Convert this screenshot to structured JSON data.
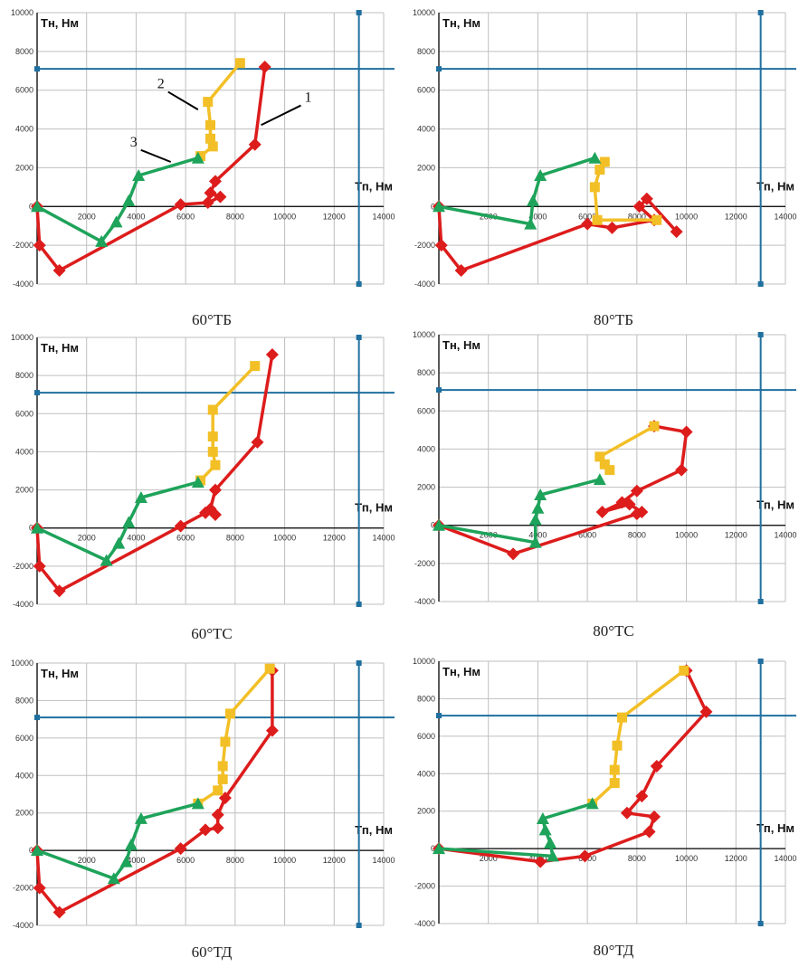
{
  "colors": {
    "series_1": "#dd1c1c",
    "series_2": "#f2bf26",
    "series_3": "#1ea35a",
    "limit_lines": "#1f6f9f",
    "grid": "#bfbfbf",
    "axis": "#000000"
  },
  "chart_data": [
    {
      "type": "line",
      "caption": "60°ТБ",
      "ylabel": "Тн, Нм",
      "xlabel": "Тп, Нм",
      "xlim": [
        0,
        14000
      ],
      "ylim": [
        -4000,
        10000
      ],
      "x_ticks": [
        "2000",
        "4000",
        "6000",
        "8000",
        "10000",
        "12000",
        "14000"
      ],
      "y_ticks": [
        "-4000",
        "-2000",
        "0",
        "2000",
        "4000",
        "6000",
        "8000",
        "10000"
      ],
      "grid": true,
      "limit_lines": {
        "x": 13000,
        "y": 7100
      },
      "annotations": [
        {
          "text": "1",
          "x": 10800,
          "y": 5400,
          "ax": 9050,
          "ay": 4200
        },
        {
          "text": "2",
          "x": 5000,
          "y": 6100,
          "ax": 6500,
          "ay": 5000
        },
        {
          "text": "3",
          "x": 3900,
          "y": 3100,
          "ax": 5400,
          "ay": 2300
        }
      ],
      "series": [
        {
          "values": [
            [
              9200,
              7200
            ],
            [
              8800,
              3200
            ],
            [
              7200,
              1300
            ],
            [
              7000,
              700
            ],
            [
              7400,
              500
            ],
            [
              6900,
              200
            ],
            [
              5800,
              100
            ],
            [
              900,
              -3300
            ],
            [
              100,
              -2000
            ],
            [
              0,
              0
            ]
          ]
        },
        {
          "values": [
            [
              8200,
              7400
            ],
            [
              6900,
              5400
            ],
            [
              7000,
              4200
            ],
            [
              7000,
              3500
            ],
            [
              7100,
              3100
            ],
            [
              6600,
              2600
            ]
          ]
        },
        {
          "values": [
            [
              0,
              0
            ],
            [
              2600,
              -1800
            ],
            [
              3200,
              -800
            ],
            [
              3700,
              300
            ],
            [
              4100,
              1600
            ],
            [
              6500,
              2500
            ]
          ]
        }
      ]
    },
    {
      "type": "line",
      "caption": "80°ТБ",
      "ylabel": "Тн, Нм",
      "xlabel": "Тп, Нм",
      "xlim": [
        0,
        14000
      ],
      "ylim": [
        -4000,
        10000
      ],
      "x_ticks": [
        "2000",
        "4000",
        "6000",
        "8000",
        "10000",
        "12000",
        "14000"
      ],
      "y_ticks": [
        "-4000",
        "-2000",
        "0",
        "2000",
        "4000",
        "6000",
        "8000",
        "10000"
      ],
      "grid": true,
      "limit_lines": {
        "x": 13000,
        "y": 7100
      },
      "annotations": [],
      "series": [
        {
          "values": [
            [
              9600,
              -1300
            ],
            [
              8400,
              400
            ],
            [
              8100,
              0
            ],
            [
              8700,
              -700
            ],
            [
              7000,
              -1100
            ],
            [
              6000,
              -900
            ],
            [
              900,
              -3300
            ],
            [
              100,
              -2000
            ],
            [
              0,
              0
            ]
          ]
        },
        {
          "values": [
            [
              6700,
              2300
            ],
            [
              6500,
              1900
            ],
            [
              6300,
              1000
            ],
            [
              6400,
              -700
            ],
            [
              8800,
              -700
            ]
          ]
        },
        {
          "values": [
            [
              0,
              0
            ],
            [
              3700,
              -900
            ],
            [
              3800,
              300
            ],
            [
              4100,
              1600
            ],
            [
              6300,
              2500
            ]
          ]
        }
      ]
    },
    {
      "type": "line",
      "caption": "60°ТС",
      "ylabel": "Тн, Нм",
      "xlabel": "Тп, Нм",
      "xlim": [
        0,
        14000
      ],
      "ylim": [
        -4000,
        10000
      ],
      "x_ticks": [
        "2000",
        "4000",
        "6000",
        "8000",
        "10000",
        "12000",
        "14000"
      ],
      "y_ticks": [
        "-4000",
        "-2000",
        "0",
        "2000",
        "4000",
        "6000",
        "8000",
        "10000"
      ],
      "grid": true,
      "limit_lines": {
        "x": 13000,
        "y": 7100
      },
      "annotations": [],
      "series": [
        {
          "values": [
            [
              9500,
              9100
            ],
            [
              8900,
              4500
            ],
            [
              7200,
              2000
            ],
            [
              7000,
              1000
            ],
            [
              7200,
              700
            ],
            [
              6800,
              800
            ],
            [
              5800,
              100
            ],
            [
              900,
              -3300
            ],
            [
              100,
              -2000
            ],
            [
              0,
              0
            ]
          ]
        },
        {
          "values": [
            [
              8800,
              8500
            ],
            [
              7100,
              6200
            ],
            [
              7100,
              4800
            ],
            [
              7100,
              4000
            ],
            [
              7200,
              3300
            ],
            [
              6600,
              2500
            ]
          ]
        },
        {
          "values": [
            [
              0,
              0
            ],
            [
              2800,
              -1700
            ],
            [
              3300,
              -800
            ],
            [
              3700,
              300
            ],
            [
              4200,
              1600
            ],
            [
              6500,
              2400
            ]
          ]
        }
      ]
    },
    {
      "type": "line",
      "caption": "80°ТС",
      "ylabel": "Тн, Нм",
      "xlabel": "Тп, Нм",
      "xlim": [
        0,
        14000
      ],
      "ylim": [
        -4000,
        10000
      ],
      "x_ticks": [
        "2000",
        "4000",
        "6000",
        "8000",
        "10000",
        "12000",
        "14000"
      ],
      "y_ticks": [
        "-4000",
        "-2000",
        "0",
        "2000",
        "4000",
        "6000",
        "8000",
        "10000"
      ],
      "grid": true,
      "limit_lines": {
        "x": 13000,
        "y": 7100
      },
      "annotations": [],
      "series": [
        {
          "values": [
            [
              8700,
              5200
            ],
            [
              10000,
              4900
            ],
            [
              9800,
              2900
            ],
            [
              8000,
              1800
            ],
            [
              7400,
              1200
            ],
            [
              6600,
              700
            ],
            [
              7700,
              1100
            ],
            [
              8200,
              700
            ],
            [
              8000,
              600
            ],
            [
              3000,
              -1500
            ],
            [
              0,
              0
            ]
          ]
        },
        {
          "values": [
            [
              8700,
              5200
            ],
            [
              6500,
              3600
            ],
            [
              6700,
              3200
            ],
            [
              6900,
              2900
            ]
          ]
        },
        {
          "values": [
            [
              0,
              0
            ],
            [
              3900,
              -900
            ],
            [
              3900,
              300
            ],
            [
              4000,
              900
            ],
            [
              4100,
              1600
            ],
            [
              6500,
              2400
            ]
          ]
        }
      ]
    },
    {
      "type": "line",
      "caption": "60°ТД",
      "ylabel": "Тн, Нм",
      "xlabel": "Тп, Нм",
      "xlim": [
        0,
        14000
      ],
      "ylim": [
        -4000,
        10000
      ],
      "x_ticks": [
        "2000",
        "4000",
        "6000",
        "8000",
        "10000",
        "12000",
        "14000"
      ],
      "y_ticks": [
        "-4000",
        "-2000",
        "0",
        "2000",
        "4000",
        "6000",
        "8000",
        "10000"
      ],
      "grid": true,
      "limit_lines": {
        "x": 13000,
        "y": 7100
      },
      "annotations": [],
      "series": [
        {
          "values": [
            [
              9500,
              9600
            ],
            [
              9500,
              6400
            ],
            [
              7600,
              2800
            ],
            [
              7300,
              1900
            ],
            [
              7300,
              1200
            ],
            [
              6800,
              1100
            ],
            [
              5800,
              100
            ],
            [
              900,
              -3300
            ],
            [
              100,
              -2000
            ],
            [
              0,
              0
            ]
          ]
        },
        {
          "values": [
            [
              9400,
              9700
            ],
            [
              7800,
              7300
            ],
            [
              7600,
              5800
            ],
            [
              7500,
              4500
            ],
            [
              7500,
              3800
            ],
            [
              7300,
              3200
            ],
            [
              6500,
              2500
            ]
          ]
        },
        {
          "values": [
            [
              0,
              0
            ],
            [
              3100,
              -1500
            ],
            [
              3600,
              -600
            ],
            [
              3800,
              300
            ],
            [
              4200,
              1700
            ],
            [
              6500,
              2500
            ]
          ]
        }
      ]
    },
    {
      "type": "line",
      "caption": "80°ТД",
      "ylabel": "Тн, Нм",
      "xlabel": "Тп, Нм",
      "xlim": [
        0,
        14000
      ],
      "ylim": [
        -4000,
        10000
      ],
      "x_ticks": [
        "2000",
        "4000",
        "6000",
        "8000",
        "10000",
        "12000",
        "14000"
      ],
      "y_ticks": [
        "-4000",
        "-2000",
        "0",
        "2000",
        "4000",
        "6000",
        "8000",
        "10000"
      ],
      "grid": true,
      "limit_lines": {
        "x": 13000,
        "y": 7100
      },
      "annotations": [],
      "series": [
        {
          "values": [
            [
              10000,
              9500
            ],
            [
              10800,
              7300
            ],
            [
              8800,
              4400
            ],
            [
              8200,
              2800
            ],
            [
              7600,
              1900
            ],
            [
              8700,
              1700
            ],
            [
              8500,
              900
            ],
            [
              5900,
              -400
            ],
            [
              4100,
              -700
            ],
            [
              0,
              0
            ]
          ]
        },
        {
          "values": [
            [
              9900,
              9500
            ],
            [
              7400,
              7000
            ],
            [
              7200,
              5500
            ],
            [
              7100,
              4200
            ],
            [
              7100,
              3500
            ],
            [
              6200,
              2400
            ]
          ]
        },
        {
          "values": [
            [
              0,
              0
            ],
            [
              4600,
              -400
            ],
            [
              4500,
              300
            ],
            [
              4300,
              1000
            ],
            [
              4200,
              1600
            ],
            [
              6200,
              2400
            ]
          ]
        }
      ]
    }
  ]
}
